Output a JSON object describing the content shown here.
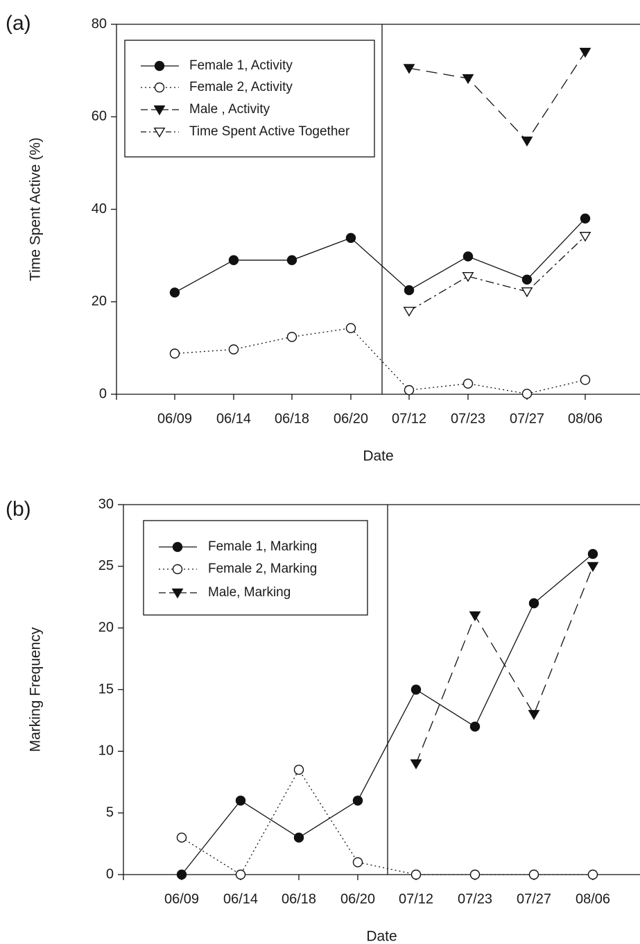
{
  "chart_data": [
    {
      "panel": "(a)",
      "type": "line",
      "title": "",
      "xlabel": "Date",
      "ylabel": "Time Spent Active (%)",
      "ylim": [
        0,
        80
      ],
      "yticks": [
        "0",
        "20",
        "40",
        "60",
        "80"
      ],
      "categories": [
        "06/09",
        "06/14",
        "06/18",
        "06/20",
        "07/12",
        "07/23",
        "07/27",
        "08/06"
      ],
      "divider_between": [
        "06/20",
        "07/12"
      ],
      "legend_position": "top-left",
      "series": [
        {
          "name": "Female 1, Activity",
          "marker": "filled-circle",
          "line": "solid",
          "values": [
            22,
            29,
            29,
            33.8,
            22.5,
            29.8,
            24.8,
            38
          ]
        },
        {
          "name": "Female 2, Activity",
          "marker": "open-circle",
          "line": "dotted",
          "values": [
            8.8,
            9.7,
            12.4,
            14.3,
            0.9,
            2.3,
            0.1,
            3.1
          ]
        },
        {
          "name": "Male , Activity",
          "marker": "filled-triangle-down",
          "line": "dashed",
          "values": [
            null,
            null,
            null,
            null,
            70.5,
            68.3,
            54.8,
            74
          ]
        },
        {
          "name": "Time Spent Active Together",
          "marker": "open-triangle-down",
          "line": "dash-dot",
          "values": [
            null,
            null,
            null,
            null,
            18,
            25.5,
            22.2,
            34.2
          ]
        }
      ]
    },
    {
      "panel": "(b)",
      "type": "line",
      "title": "",
      "xlabel": "Date",
      "ylabel": "Marking Frequency",
      "ylim": [
        0,
        30
      ],
      "yticks": [
        "0",
        "5",
        "10",
        "15",
        "20",
        "25",
        "30"
      ],
      "categories": [
        "06/09",
        "06/14",
        "06/18",
        "06/20",
        "07/12",
        "07/23",
        "07/27",
        "08/06"
      ],
      "divider_between": [
        "06/20",
        "07/12"
      ],
      "legend_position": "top-left",
      "series": [
        {
          "name": "Female 1, Marking",
          "marker": "filled-circle",
          "line": "solid",
          "values": [
            0,
            6,
            3,
            6,
            15,
            12,
            22,
            26
          ]
        },
        {
          "name": "Female 2, Marking",
          "marker": "open-circle",
          "line": "dotted",
          "values": [
            3,
            0,
            8.5,
            1,
            0,
            0,
            0,
            0
          ]
        },
        {
          "name": "Male, Marking",
          "marker": "filled-triangle-down",
          "line": "dashed",
          "values": [
            null,
            null,
            null,
            null,
            9,
            21,
            13,
            25
          ]
        }
      ]
    }
  ]
}
